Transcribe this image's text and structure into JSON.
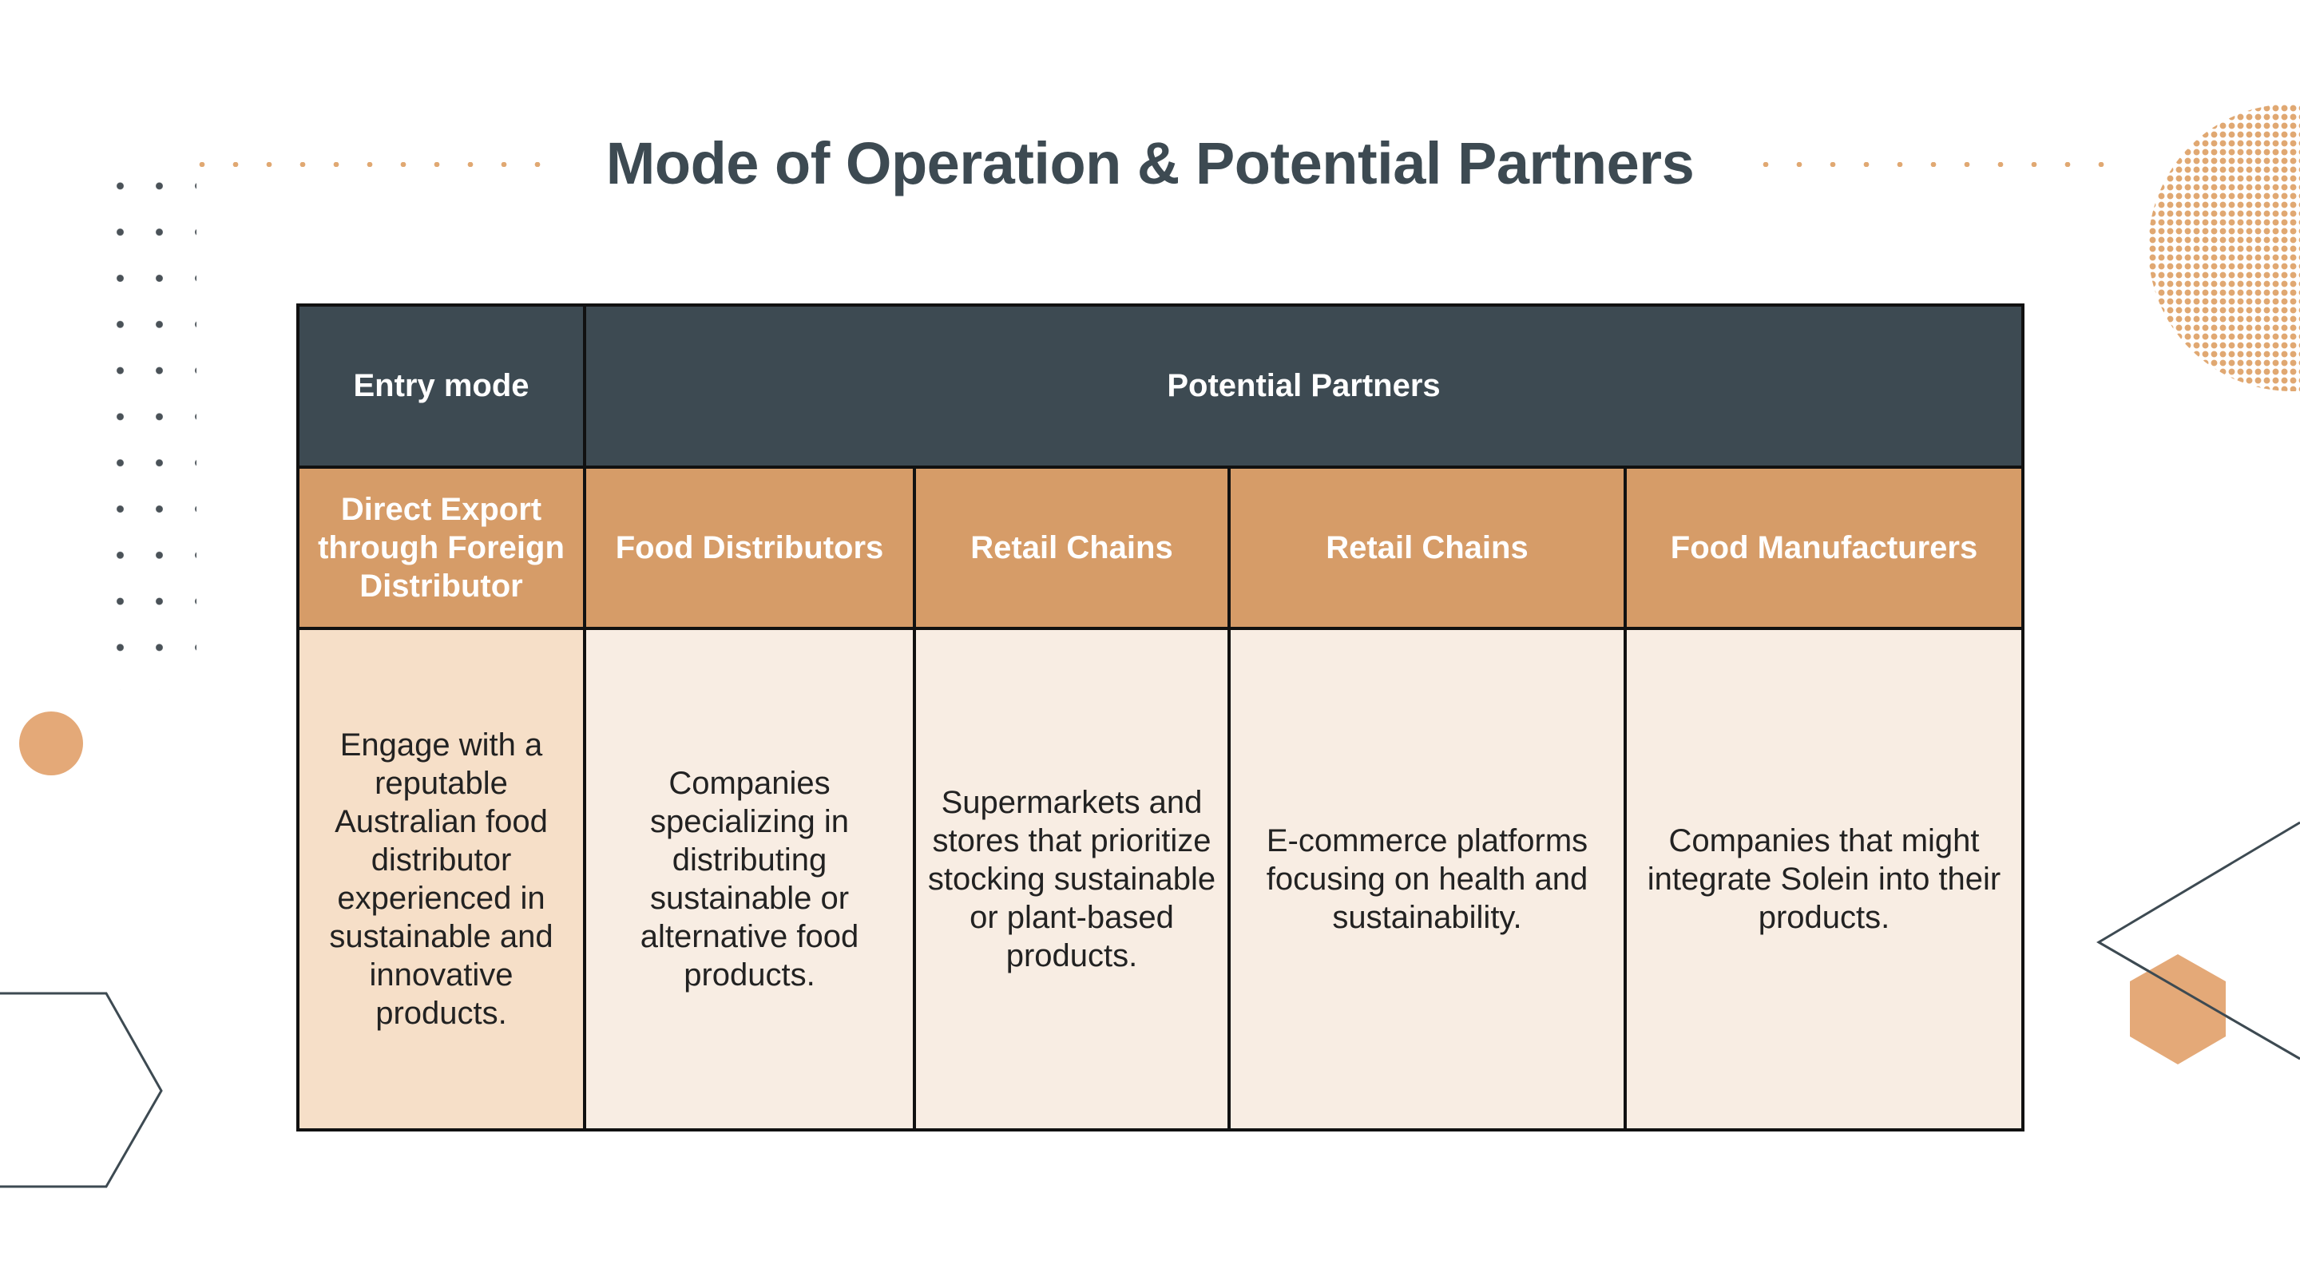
{
  "title": "Mode of Operation & Potential Partners",
  "colors": {
    "header_bg": "#3d4a52",
    "subheader_bg": "#d69c68",
    "body_bg": "#f8ede3",
    "first_col_bg": "#f6dfc8",
    "accent": "#e4a978"
  },
  "table": {
    "header": {
      "entry_mode": "Entry mode",
      "potential_partners": "Potential Partners"
    },
    "subheader": [
      "Direct Export through Foreign Distributor",
      "Food Distributors",
      "Retail Chains",
      "Retail Chains",
      "Food Manufacturers"
    ],
    "body": [
      "Engage with a reputable Australian food distributor experienced in sustainable and innovative products.",
      "Companies specializing in distributing sustainable or alternative food products.",
      "Supermarkets and stores that prioritize stocking sustainable or plant-based products.",
      "E-commerce platforms focusing on health and sustainability.",
      "Companies that might integrate Solein into their products."
    ]
  }
}
